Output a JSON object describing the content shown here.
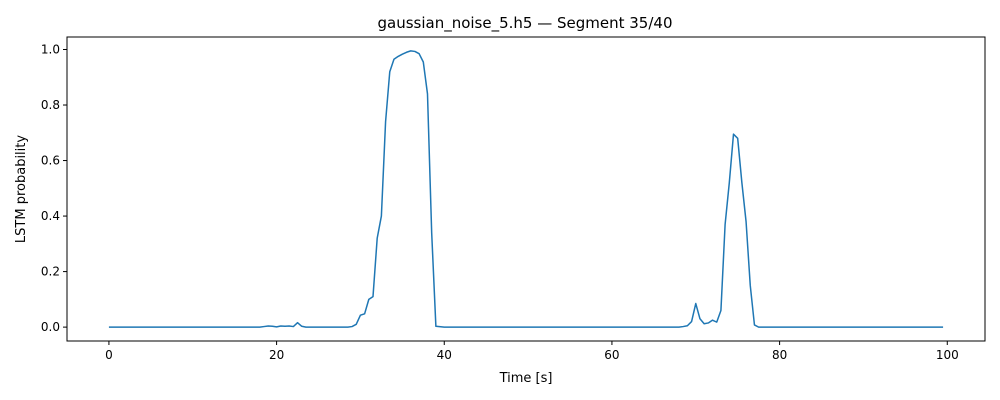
{
  "chart_data": {
    "type": "line",
    "title": "gaussian_noise_5.h5 — Segment 35/40",
    "xlabel": "Time [s]",
    "ylabel": "LSTM probability",
    "xlim": [
      -5,
      104.5
    ],
    "ylim": [
      -0.05,
      1.045
    ],
    "xticks": [
      0,
      20,
      40,
      60,
      80,
      100
    ],
    "yticks": [
      0.0,
      0.2,
      0.4,
      0.6,
      0.8,
      1.0
    ],
    "xtick_labels": [
      "0",
      "20",
      "40",
      "60",
      "80",
      "100"
    ],
    "ytick_labels": [
      "0.0",
      "0.2",
      "0.4",
      "0.6",
      "0.8",
      "1.0"
    ],
    "grid": false,
    "series": [
      {
        "color": "#1f77b4",
        "x": [
          0,
          5,
          10,
          15,
          18,
          18.5,
          19,
          19.5,
          20,
          20.5,
          21,
          21.5,
          22,
          22.5,
          23,
          23.5,
          24,
          26,
          28.5,
          29,
          29.5,
          30,
          30.5,
          31,
          31.5,
          32,
          32.5,
          33,
          33.5,
          34,
          34.5,
          35,
          35.5,
          36,
          36.5,
          37,
          37.5,
          38,
          38.5,
          39,
          40,
          50,
          60,
          68,
          68.5,
          69,
          69.5,
          70,
          70.5,
          71,
          71.5,
          72,
          72.5,
          73,
          73.5,
          74,
          74.5,
          75,
          75.5,
          76,
          76.5,
          77,
          77.5,
          78,
          80,
          90,
          99.5
        ],
        "y": [
          0,
          0,
          0,
          0,
          0,
          0.002,
          0.004,
          0.003,
          0.001,
          0.004,
          0.003,
          0.004,
          0.002,
          0.016,
          0.003,
          0,
          0,
          0,
          0,
          0.002,
          0.01,
          0.043,
          0.048,
          0.1,
          0.11,
          0.32,
          0.4,
          0.74,
          0.92,
          0.965,
          0.975,
          0.983,
          0.99,
          0.995,
          0.993,
          0.985,
          0.955,
          0.84,
          0.34,
          0.003,
          0,
          0,
          0,
          0,
          0.002,
          0.005,
          0.02,
          0.085,
          0.03,
          0.012,
          0.015,
          0.025,
          0.018,
          0.06,
          0.37,
          0.52,
          0.695,
          0.68,
          0.52,
          0.38,
          0.15,
          0.008,
          0,
          0,
          0,
          0,
          0
        ]
      }
    ]
  }
}
